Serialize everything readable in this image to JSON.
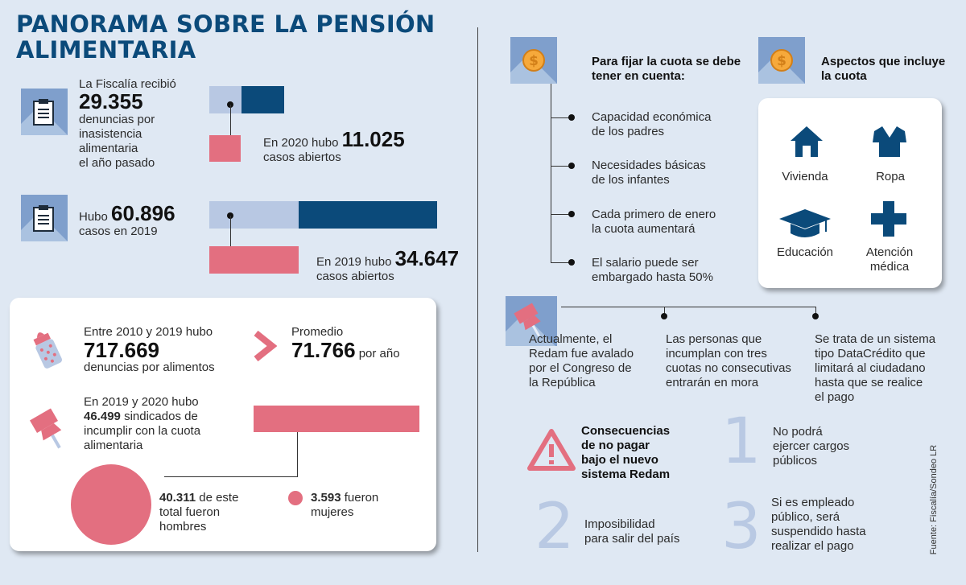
{
  "title": {
    "line1": "PANORAMA SOBRE LA PENSIÓN",
    "line2": "ALIMENTARIA"
  },
  "left": {
    "block1": {
      "pre": "La Fiscalía recibió",
      "value": "29.355",
      "post1": "denuncias por",
      "post2": "inasistencia",
      "post3": "alimentaria",
      "post4": "el año pasado",
      "open_pre": "En 2020 hubo",
      "open_value": "11.025",
      "open_post": "casos abiertos"
    },
    "block2": {
      "pre": "Hubo",
      "value": "60.896",
      "post": "casos en 2019",
      "open_pre": "En 2019 hubo",
      "open_value": "34.647",
      "open_post": "casos abiertos"
    },
    "panel": {
      "range_pre": "Entre 2010 y 2019 hubo",
      "range_value": "717.669",
      "range_post": "denuncias por alimentos",
      "avg_label": "Promedio",
      "avg_value": "71.766",
      "avg_unit": "por año",
      "sind_pre": "En 2019 y 2020 hubo",
      "sind_value": "46.499",
      "sind_text": "sindicados de",
      "sind_line2": "incumplir con la cuota",
      "sind_line3": "alimentaria",
      "men_value": "40.311",
      "men_text1": "de este",
      "men_text2": "total fueron",
      "men_text3": "hombres",
      "women_value": "3.593",
      "women_text1": "fueron",
      "women_text2": "mujeres"
    }
  },
  "right": {
    "fix": {
      "heading1": "Para fijar la cuota se debe",
      "heading2": "tener en cuenta:",
      "items": [
        {
          "l1": "Capacidad económica",
          "l2": "de los padres"
        },
        {
          "l1": "Necesidades básicas",
          "l2": "de los infantes"
        },
        {
          "l1": "Cada primero de enero",
          "l2": "la cuota aumentará"
        },
        {
          "l1": "El salario puede ser",
          "l2": "embargado hasta 50%"
        }
      ]
    },
    "includes": {
      "heading1": "Aspectos que incluye",
      "heading2": "la cuota",
      "items": [
        "Vivienda",
        "Ropa",
        "Educación",
        "Atención",
        "médica"
      ]
    },
    "redam": {
      "cols": [
        [
          "Actualmente, el",
          "Redam fue avalado",
          "por el Congreso de",
          "la República"
        ],
        [
          "Las personas que",
          "incumplan con tres",
          "cuotas no consecutivas",
          "entrarán en mora"
        ],
        [
          "Se trata de un sistema",
          "tipo DataCrédito que",
          "limitará al ciudadano",
          "hasta que se realice",
          "el pago"
        ]
      ]
    },
    "consequences": {
      "heading": [
        "Consecuencias",
        "de no pagar",
        "bajo el nuevo",
        "sistema Redam"
      ],
      "items": [
        {
          "n": "1",
          "lines": [
            "No podrá",
            "ejercer cargos",
            "públicos"
          ]
        },
        {
          "n": "2",
          "lines": [
            "Imposibilidad",
            "para salir del país"
          ]
        },
        {
          "n": "3",
          "lines": [
            "Si es empleado",
            "público, será",
            "suspendido hasta",
            "realizar el pago"
          ]
        }
      ]
    },
    "source": "Fuente: Fiscalía/Sondeo LR"
  },
  "colors": {
    "navy": "#0b4a7a",
    "light_blue": "#b8c8e3",
    "pink": "#e36f80",
    "bg": "#dfe8f3"
  }
}
